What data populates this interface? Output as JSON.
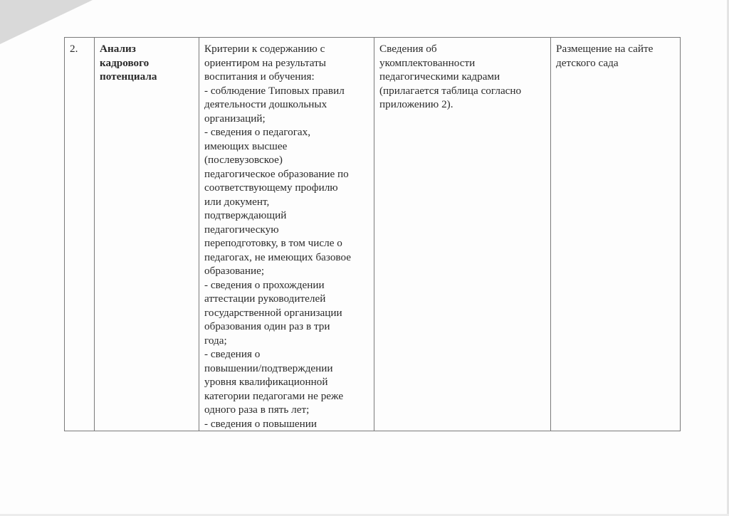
{
  "row": {
    "number": "2.",
    "section_lines": [
      "Анализ",
      "кадрового",
      "потенциала"
    ],
    "criteria_lines": [
      "Критерии к содержанию с",
      "ориентиром на результаты",
      "воспитания и обучения:",
      "- соблюдение Типовых правил",
      "деятельности дошкольных",
      "организаций;",
      "- сведения о педагогах,",
      "имеющих высшее",
      "(послевузовское)",
      "педагогическое образование по",
      "соответствующему профилю",
      "или документ,",
      "подтверждающий",
      "педагогическую",
      "переподготовку, в том числе о",
      "педагогах, не имеющих базовое",
      "образование;",
      "- сведения о прохождении",
      "аттестации руководителей",
      "государственной организации",
      "образования один раз в три",
      "года;",
      "- сведения о",
      "повышении/подтверждении",
      "уровня квалификационной",
      "категории педагогами не реже",
      "одного раза в пять лет;",
      "- сведения о повышении"
    ],
    "info_lines": [
      "Сведения об",
      "укомплектованности",
      "педагогическими кадрами",
      "(прилагается таблица согласно",
      "приложению 2)."
    ],
    "placement_lines": [
      "Размещение на сайте",
      "детского сада"
    ]
  }
}
